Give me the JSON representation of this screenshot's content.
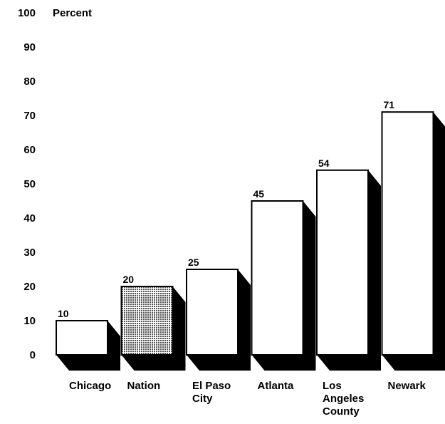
{
  "chart_data": {
    "type": "bar",
    "ylabel": "Percent",
    "ylim": [
      0,
      100
    ],
    "yticks": [
      0,
      10,
      20,
      30,
      40,
      50,
      60,
      70,
      80,
      90,
      100
    ],
    "categories": [
      [
        "Chicago"
      ],
      [
        "Nation"
      ],
      [
        "El Paso",
        "City"
      ],
      [
        "Atlanta"
      ],
      [
        "Los",
        "Angeles",
        "County"
      ],
      [
        "Newark"
      ]
    ],
    "values": [
      10,
      20,
      25,
      45,
      54,
      71
    ],
    "highlight_index": 1,
    "colors": {
      "bar_fill": "#ffffff",
      "bar_stroke": "#000000",
      "shadow": "#000000",
      "highlight_fill": "#9a9a9a"
    },
    "grid": false,
    "legend": "none"
  }
}
